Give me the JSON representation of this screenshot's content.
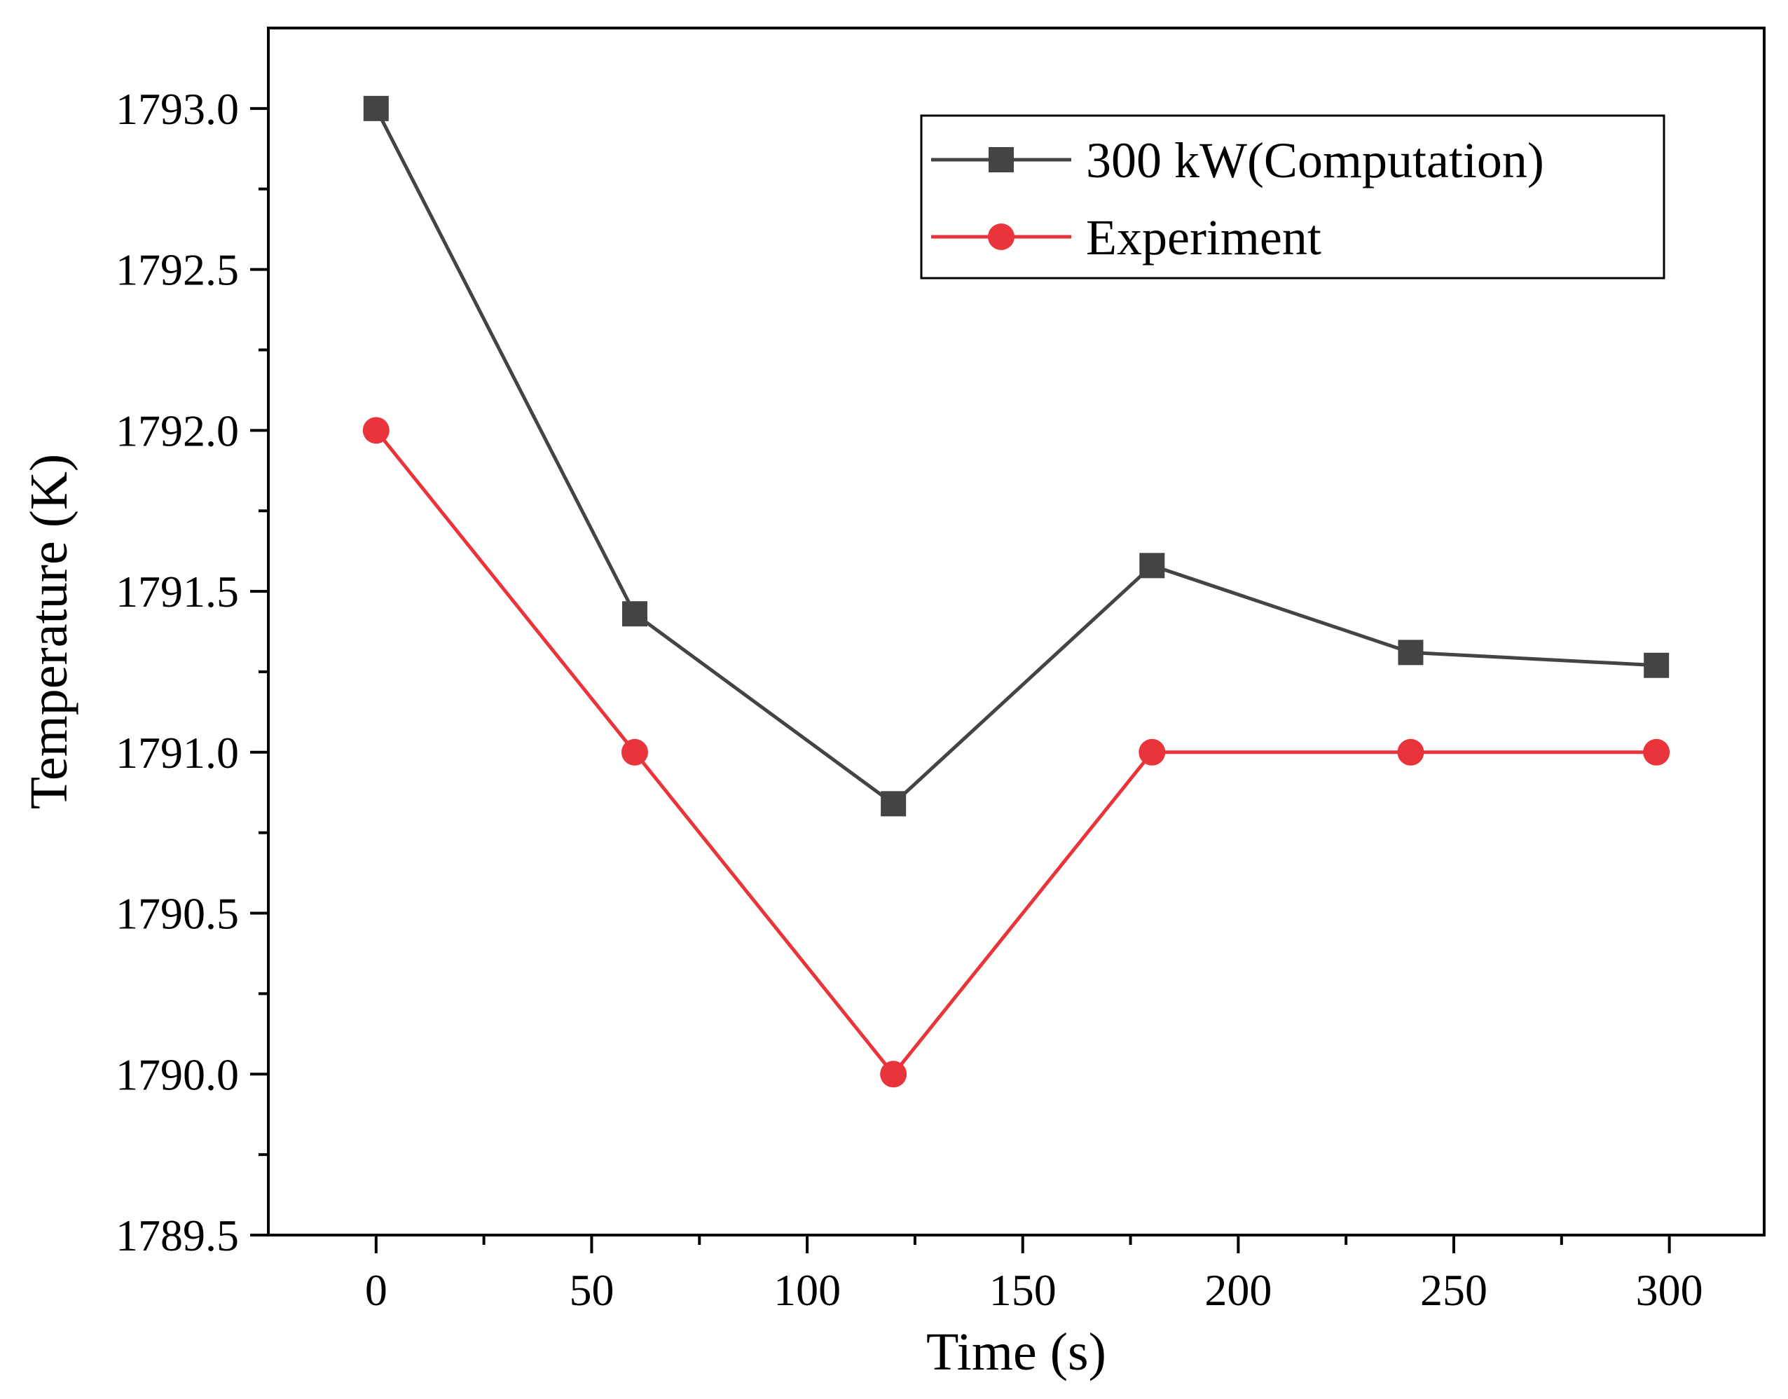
{
  "chart_data": {
    "type": "line",
    "title": "",
    "xlabel": "Time (s)",
    "ylabel": "Temperature (K)",
    "xlim": [
      -25,
      322
    ],
    "ylim": [
      1789.5,
      1793.25
    ],
    "x_ticks": [
      0,
      50,
      100,
      150,
      200,
      250,
      300
    ],
    "x_tick_labels": [
      "0",
      "50",
      "100",
      "150",
      "200",
      "250",
      "300"
    ],
    "x_minor_ticks": [
      25,
      75,
      125,
      175,
      225,
      275
    ],
    "y_ticks": [
      1789.5,
      1790.0,
      1790.5,
      1791.0,
      1791.5,
      1792.0,
      1792.5,
      1793.0
    ],
    "y_tick_labels": [
      "1789.5",
      "1790.0",
      "1790.5",
      "1791.0",
      "1791.5",
      "1792.0",
      "1792.5",
      "1793.0"
    ],
    "y_minor_ticks": [
      1789.75,
      1790.25,
      1790.75,
      1791.25,
      1791.75,
      1792.25,
      1792.75
    ],
    "grid": false,
    "legend_position": "top-right",
    "series": [
      {
        "name": "300 kW(Computation)",
        "marker": "square",
        "color": "#444444",
        "x": [
          0,
          60,
          120,
          180,
          240,
          297
        ],
        "y": [
          1793.0,
          1791.43,
          1790.84,
          1791.58,
          1791.31,
          1791.27
        ]
      },
      {
        "name": "Experiment",
        "marker": "circle",
        "color": "#e8343a",
        "x": [
          0,
          60,
          120,
          180,
          240,
          297
        ],
        "y": [
          1792.0,
          1791.0,
          1790.0,
          1791.0,
          1791.0,
          1791.0
        ]
      }
    ]
  }
}
